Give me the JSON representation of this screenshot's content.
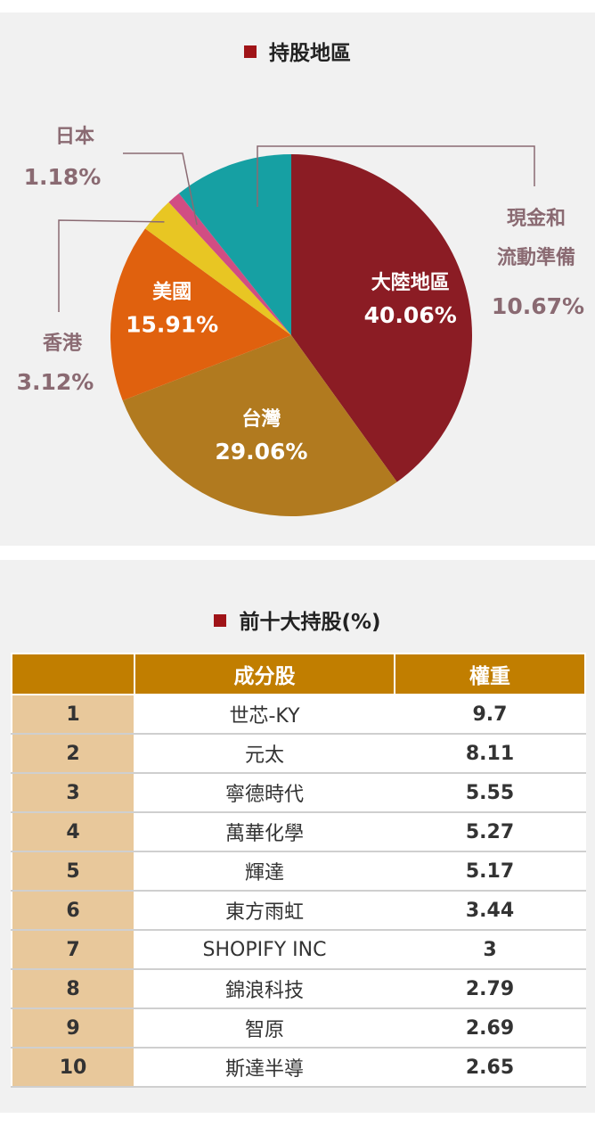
{
  "pie_section": {
    "title": "持股地區"
  },
  "table_section": {
    "title": "前十大持股(%)"
  },
  "chart_data": [
    {
      "type": "pie",
      "title": "持股地區",
      "slices": [
        {
          "label": "大陸地區",
          "value": 40.06,
          "value_text": "40.06%",
          "color": "#8b1c24"
        },
        {
          "label": "台灣",
          "value": 29.06,
          "value_text": "29.06%",
          "color": "#b17a1f"
        },
        {
          "label": "美國",
          "value": 15.91,
          "value_text": "15.91%",
          "color": "#e0610e"
        },
        {
          "label": "香港",
          "value": 3.12,
          "value_text": "3.12%",
          "color": "#e8c623"
        },
        {
          "label": "日本",
          "value": 1.18,
          "value_text": "1.18%",
          "color": "#d14d83"
        },
        {
          "label": "現金和流動準備",
          "label_lines": [
            "現金和",
            "流動準備"
          ],
          "value": 10.67,
          "value_text": "10.67%",
          "color": "#16a0a3"
        }
      ]
    },
    {
      "type": "table",
      "title": "前十大持股(%)",
      "columns": [
        "",
        "成分股",
        "權重"
      ],
      "rows": [
        {
          "rank": "1",
          "name": "世芯-KY",
          "weight": "9.7"
        },
        {
          "rank": "2",
          "name": "元太",
          "weight": "8.11"
        },
        {
          "rank": "3",
          "name": "寧德時代",
          "weight": "5.55"
        },
        {
          "rank": "4",
          "name": "萬華化學",
          "weight": "5.27"
        },
        {
          "rank": "5",
          "name": "輝達",
          "weight": "5.17"
        },
        {
          "rank": "6",
          "name": "東方雨虹",
          "weight": "3.44"
        },
        {
          "rank": "7",
          "name": "SHOPIFY INC",
          "weight": "3"
        },
        {
          "rank": "8",
          "name": "錦浪科技",
          "weight": "2.79"
        },
        {
          "rank": "9",
          "name": "智原",
          "weight": "2.69"
        },
        {
          "rank": "10",
          "name": "斯達半導",
          "weight": "2.65"
        }
      ]
    }
  ]
}
